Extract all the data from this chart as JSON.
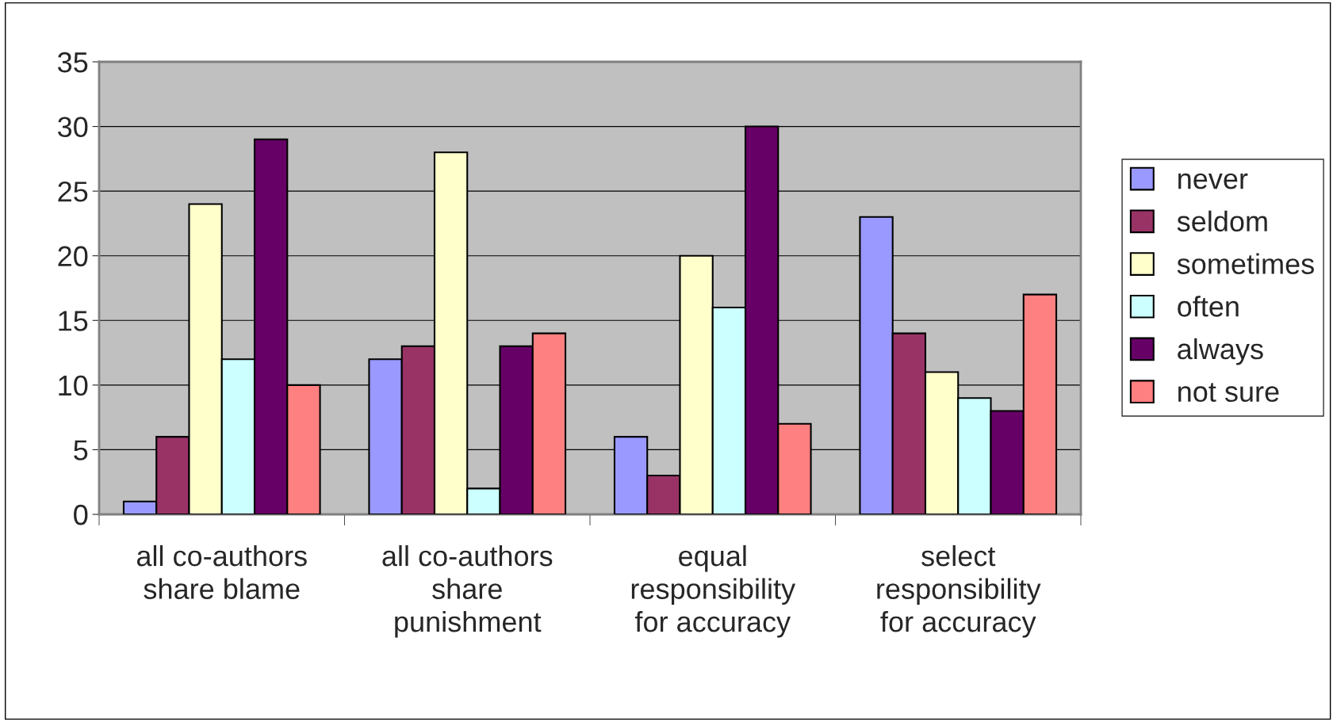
{
  "chart_data": {
    "type": "bar",
    "categories": [
      "all co-authors\nshare blame",
      "all co-authors\nshare\npunishment",
      "equal\nresponsibility\nfor accuracy",
      "select\nresponsibility\nfor accuracy"
    ],
    "series": [
      {
        "name": "never",
        "color": "#9999ff",
        "values": [
          1,
          12,
          6,
          23
        ]
      },
      {
        "name": "seldom",
        "color": "#993366",
        "values": [
          6,
          13,
          3,
          14
        ]
      },
      {
        "name": "sometimes",
        "color": "#ffffcc",
        "values": [
          24,
          28,
          20,
          11
        ]
      },
      {
        "name": "often",
        "color": "#ccffff",
        "values": [
          12,
          2,
          16,
          9
        ]
      },
      {
        "name": "always",
        "color": "#660066",
        "values": [
          29,
          13,
          30,
          8
        ]
      },
      {
        "name": "not sure",
        "color": "#ff8080",
        "values": [
          10,
          14,
          7,
          17
        ]
      }
    ],
    "ylim": [
      0,
      35
    ],
    "yticks": [
      0,
      5,
      10,
      15,
      20,
      25,
      30,
      35
    ],
    "grid": "y",
    "legend": "right"
  }
}
